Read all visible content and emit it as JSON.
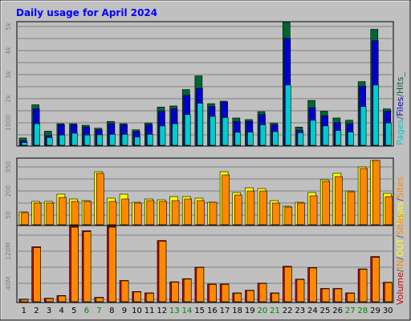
{
  "title": "Daily usage for April 2024",
  "colors": {
    "background": "#c0c0c0",
    "hits": "#006633",
    "files": "#0000cc",
    "pages": "#00cccc",
    "visits": "#ffff00",
    "sites": "#ff8800",
    "kbytes": "#cc0000",
    "kbin": "#ff8800",
    "kbout": "#ffff00",
    "title": "#0000ff",
    "weekend_day": "#008800"
  },
  "chart_data": [
    {
      "type": "bar",
      "panel": "hits-files-pages",
      "legend_text": [
        "Pages",
        "/",
        "Files",
        "/",
        "Hits",
        "_"
      ],
      "y_ticks": [
        "5k",
        "4k",
        "3k",
        "2k",
        "1000"
      ],
      "ylim": [
        0,
        5400
      ],
      "x": [
        1,
        2,
        3,
        4,
        5,
        6,
        7,
        8,
        9,
        10,
        11,
        12,
        13,
        14,
        15,
        16,
        17,
        18,
        19,
        20,
        21,
        22,
        23,
        24,
        25,
        26,
        27,
        28,
        29,
        30
      ],
      "series": [
        {
          "name": "Hits",
          "values": [
            320,
            1780,
            620,
            950,
            950,
            880,
            750,
            1050,
            950,
            680,
            980,
            1680,
            1730,
            2450,
            3050,
            1830,
            1940,
            1200,
            1130,
            1480,
            970,
            5400,
            800,
            1970,
            1500,
            1200,
            1100,
            2800,
            5100,
            1600
          ]
        },
        {
          "name": "Files",
          "values": [
            200,
            1600,
            420,
            900,
            900,
            800,
            680,
            950,
            900,
            600,
            900,
            1500,
            1600,
            2200,
            2500,
            1700,
            1900,
            1050,
            1050,
            1350,
            900,
            4700,
            660,
            1650,
            1300,
            1000,
            950,
            2600,
            4600,
            1500
          ]
        },
        {
          "name": "Pages",
          "values": [
            120,
            950,
            340,
            450,
            530,
            450,
            460,
            480,
            480,
            360,
            480,
            850,
            950,
            1350,
            1850,
            1270,
            1220,
            570,
            580,
            900,
            600,
            2650,
            550,
            1100,
            850,
            650,
            580,
            1700,
            2650,
            980
          ]
        }
      ]
    },
    {
      "type": "bar",
      "panel": "visits-sites",
      "legend_text": [
        "Visits",
        "/",
        "Sites"
      ],
      "y_ticks": [
        "350",
        "200",
        "50"
      ],
      "ylim": [
        0,
        410
      ],
      "x": [
        1,
        2,
        3,
        4,
        5,
        6,
        7,
        8,
        9,
        10,
        11,
        12,
        13,
        14,
        15,
        16,
        17,
        18,
        19,
        20,
        21,
        22,
        23,
        24,
        25,
        26,
        27,
        28,
        29,
        30
      ],
      "series": [
        {
          "name": "Visits",
          "values": [
            80,
            145,
            145,
            190,
            160,
            150,
            330,
            165,
            190,
            140,
            160,
            155,
            175,
            175,
            165,
            140,
            330,
            200,
            230,
            225,
            150,
            115,
            140,
            200,
            280,
            320,
            210,
            360,
            400,
            195
          ]
        },
        {
          "name": "Sites",
          "values": [
            75,
            135,
            135,
            170,
            145,
            145,
            320,
            145,
            160,
            135,
            150,
            145,
            150,
            160,
            150,
            140,
            310,
            185,
            210,
            210,
            135,
            110,
            135,
            180,
            270,
            300,
            205,
            350,
            400,
            175
          ]
        }
      ]
    },
    {
      "type": "bar",
      "panel": "volume",
      "legend_text": [
        "Volume",
        "/",
        "IN",
        "/",
        "OUT",
        "/",
        "Sites"
      ],
      "y_ticks": [
        "120M",
        "40M"
      ],
      "ylim": [
        0,
        170
      ],
      "x": [
        1,
        2,
        3,
        4,
        5,
        6,
        7,
        8,
        9,
        10,
        11,
        12,
        13,
        14,
        15,
        16,
        17,
        18,
        19,
        20,
        21,
        22,
        23,
        24,
        25,
        26,
        27,
        28,
        29,
        30
      ],
      "series": [
        {
          "name": "Volume",
          "values": [
            6,
            124,
            8,
            14,
            170,
            160,
            10,
            170,
            48,
            23,
            20,
            138,
            45,
            52,
            78,
            40,
            40,
            20,
            26,
            42,
            20,
            80,
            51,
            77,
            30,
            30,
            20,
            74,
            102,
            44
          ]
        },
        {
          "name": "IN",
          "values": [
            5,
            122,
            7,
            13,
            168,
            158,
            9,
            168,
            47,
            22,
            19,
            136,
            44,
            51,
            77,
            39,
            39,
            19,
            25,
            41,
            19,
            78,
            50,
            76,
            29,
            29,
            19,
            73,
            100,
            43
          ]
        }
      ]
    }
  ],
  "days": [
    {
      "label": "1",
      "weekend": false
    },
    {
      "label": "2",
      "weekend": false
    },
    {
      "label": "3",
      "weekend": false
    },
    {
      "label": "4",
      "weekend": false
    },
    {
      "label": "5",
      "weekend": false
    },
    {
      "label": "6",
      "weekend": true
    },
    {
      "label": "7",
      "weekend": true
    },
    {
      "label": "8",
      "weekend": false
    },
    {
      "label": "9",
      "weekend": false
    },
    {
      "label": "10",
      "weekend": false
    },
    {
      "label": "11",
      "weekend": false
    },
    {
      "label": "12",
      "weekend": false
    },
    {
      "label": "13",
      "weekend": true
    },
    {
      "label": "14",
      "weekend": true
    },
    {
      "label": "15",
      "weekend": false
    },
    {
      "label": "16",
      "weekend": false
    },
    {
      "label": "17",
      "weekend": false
    },
    {
      "label": "18",
      "weekend": false
    },
    {
      "label": "19",
      "weekend": false
    },
    {
      "label": "20",
      "weekend": true
    },
    {
      "label": "21",
      "weekend": true
    },
    {
      "label": "22",
      "weekend": false
    },
    {
      "label": "23",
      "weekend": false
    },
    {
      "label": "24",
      "weekend": false
    },
    {
      "label": "25",
      "weekend": false
    },
    {
      "label": "26",
      "weekend": false
    },
    {
      "label": "27",
      "weekend": true
    },
    {
      "label": "28",
      "weekend": true
    },
    {
      "label": "29",
      "weekend": false
    },
    {
      "label": "30",
      "weekend": false
    }
  ]
}
